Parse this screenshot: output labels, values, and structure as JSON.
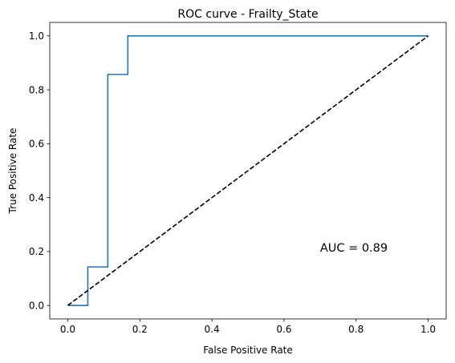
{
  "chart_data": {
    "type": "line",
    "title": "ROC curve - Frailty_State",
    "xlabel": "False Positive Rate",
    "ylabel": "True Positive Rate",
    "xlim": [
      -0.05,
      1.05
    ],
    "ylim": [
      -0.05,
      1.05
    ],
    "xticks": [
      "0.0",
      "0.2",
      "0.4",
      "0.6",
      "0.8",
      "1.0"
    ],
    "yticks": [
      "0.0",
      "0.2",
      "0.4",
      "0.6",
      "0.8",
      "1.0"
    ],
    "grid": false,
    "series": [
      {
        "style": "solid",
        "color": "#1f77b4",
        "x": [
          0.0,
          0.0,
          0.0556,
          0.0556,
          0.1111,
          0.1111,
          0.1667,
          0.1667,
          1.0
        ],
        "y": [
          0.0,
          0.0,
          0.0,
          0.1429,
          0.1429,
          0.8571,
          0.8571,
          1.0,
          1.0
        ]
      },
      {
        "style": "dashed",
        "color": "#000000",
        "x": [
          0.0,
          1.0
        ],
        "y": [
          0.0,
          1.0
        ]
      }
    ],
    "annotations": [
      {
        "text": "AUC = 0.89",
        "x": 0.7,
        "y": 0.2
      }
    ]
  }
}
